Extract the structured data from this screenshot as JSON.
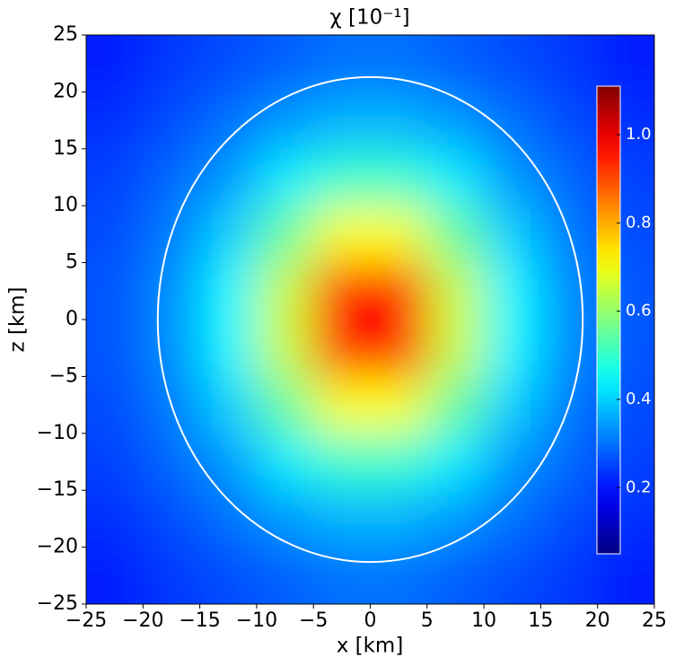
{
  "chart_data": {
    "type": "heatmap",
    "title": "χ [10⁻¹]",
    "xlabel": "x [km]",
    "ylabel": "z [km]",
    "x": [
      -22.5,
      -17.5,
      -12.5,
      -7.5,
      -2.5,
      2.5,
      7.5,
      12.5,
      17.5,
      22.5
    ],
    "y": [
      -22.5,
      -17.5,
      -12.5,
      -7.5,
      -2.5,
      2.5,
      7.5,
      12.5,
      17.5,
      22.5
    ],
    "values": [
      [
        0.21,
        0.24,
        0.26,
        0.28,
        0.3,
        0.3,
        0.28,
        0.26,
        0.24,
        0.21
      ],
      [
        0.23,
        0.26,
        0.3,
        0.34,
        0.37,
        0.37,
        0.34,
        0.3,
        0.26,
        0.23
      ],
      [
        0.25,
        0.29,
        0.34,
        0.43,
        0.5,
        0.5,
        0.43,
        0.34,
        0.29,
        0.25
      ],
      [
        0.26,
        0.31,
        0.4,
        0.55,
        0.71,
        0.71,
        0.55,
        0.4,
        0.31,
        0.26
      ],
      [
        0.27,
        0.33,
        0.44,
        0.66,
        0.96,
        0.96,
        0.66,
        0.44,
        0.33,
        0.27
      ],
      [
        0.27,
        0.33,
        0.44,
        0.66,
        0.96,
        0.96,
        0.66,
        0.44,
        0.33,
        0.27
      ],
      [
        0.26,
        0.31,
        0.4,
        0.55,
        0.71,
        0.71,
        0.55,
        0.4,
        0.31,
        0.26
      ],
      [
        0.25,
        0.29,
        0.34,
        0.43,
        0.5,
        0.5,
        0.43,
        0.34,
        0.29,
        0.25
      ],
      [
        0.23,
        0.26,
        0.3,
        0.34,
        0.37,
        0.37,
        0.34,
        0.3,
        0.26,
        0.23
      ],
      [
        0.21,
        0.24,
        0.26,
        0.28,
        0.3,
        0.3,
        0.28,
        0.26,
        0.24,
        0.21
      ]
    ],
    "colormap": "jet",
    "clim": [
      0.05,
      1.11
    ],
    "cticks": [
      0.2,
      0.4,
      0.6,
      0.8,
      {
        "value": 1,
        "label": "1.0"
      }
    ],
    "contour": {
      "color": "white",
      "x_radius": 18.7,
      "y_radius": 21.3
    },
    "xlim": [
      -25,
      25
    ],
    "ylim": [
      -25,
      25
    ],
    "xticks": [
      {
        "value": -25,
        "label": "−25"
      },
      {
        "value": -20,
        "label": "−20"
      },
      {
        "value": -15,
        "label": "−15"
      },
      {
        "value": -10,
        "label": "−10"
      },
      {
        "value": -5,
        "label": "−5"
      },
      0,
      5,
      10,
      15,
      20,
      25
    ],
    "yticks": [
      {
        "value": -25,
        "label": "−25"
      },
      {
        "value": -20,
        "label": "−20"
      },
      {
        "value": -15,
        "label": "−15"
      },
      {
        "value": -10,
        "label": "−10"
      },
      {
        "value": -5,
        "label": "−5"
      },
      0,
      5,
      10,
      15,
      20,
      25
    ]
  }
}
